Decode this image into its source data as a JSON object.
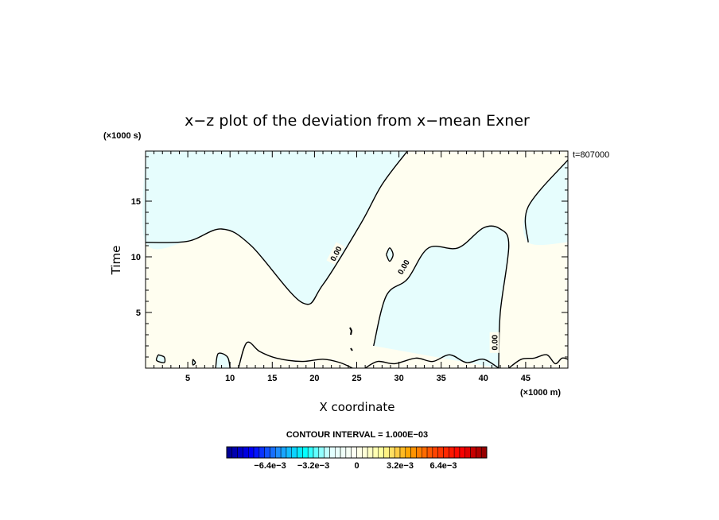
{
  "chart_data": {
    "type": "heatmap",
    "title": "x−z plot of the deviation from x−mean Exner",
    "xlabel": "X coordinate",
    "ylabel": "Time",
    "x_unit": "(×1000 m)",
    "y_unit": "(×1000 s)",
    "time_stamp": "t=807000",
    "xlim": [
      0,
      50
    ],
    "ylim": [
      0,
      19.5
    ],
    "x_ticks": [
      5,
      10,
      15,
      20,
      25,
      30,
      35,
      40,
      45
    ],
    "y_ticks": [
      5,
      10,
      15
    ],
    "contour_interval_text": "CONTOUR INTERVAL = 1.000E−03",
    "contour_labels": [
      "0.00",
      "0.00",
      "0.00"
    ],
    "colorbar": {
      "tick_labels": [
        "−6.4e−3",
        "−3.2e−3",
        "0",
        "3.2e−3",
        "6.4e−3"
      ],
      "tick_values": [
        -0.0064,
        -0.0032,
        0,
        0.0032,
        0.0064
      ],
      "min": -0.0096,
      "max": 0.0096,
      "colors": [
        "#00008b",
        "#0000ff",
        "#1e90ff",
        "#00ffff",
        "#e0ffff",
        "#fffff0",
        "#ffff99",
        "#ffa500",
        "#ff4500",
        "#ff0000",
        "#8b0000"
      ]
    },
    "fill_colors": {
      "negative_small": "#e6fdfd",
      "positive_small": "#fffef0"
    },
    "regions": [
      {
        "sign": "negative",
        "description_points": [
          [
            0,
            19.5
          ],
          [
            0,
            11.3
          ],
          [
            5,
            11.4
          ],
          [
            9,
            12.5
          ],
          [
            12.5,
            11
          ],
          [
            18.5,
            5.9
          ],
          [
            21,
            7.5
          ],
          [
            25.5,
            13
          ],
          [
            28,
            16.5
          ],
          [
            31,
            19.5
          ]
        ]
      },
      {
        "sign": "negative",
        "description_points": [
          [
            27,
            2
          ],
          [
            28.5,
            6.5
          ],
          [
            31,
            8
          ],
          [
            33.5,
            10.8
          ],
          [
            37,
            10.8
          ],
          [
            40,
            12.6
          ],
          [
            42,
            12.5
          ],
          [
            43,
            11
          ],
          [
            42,
            5
          ],
          [
            41.8,
            0
          ]
        ]
      },
      {
        "sign": "negative",
        "description_points": [
          [
            50,
            11.3
          ],
          [
            45.3,
            11.3
          ],
          [
            45.3,
            14.5
          ],
          [
            50,
            18.7
          ]
        ]
      }
    ]
  }
}
